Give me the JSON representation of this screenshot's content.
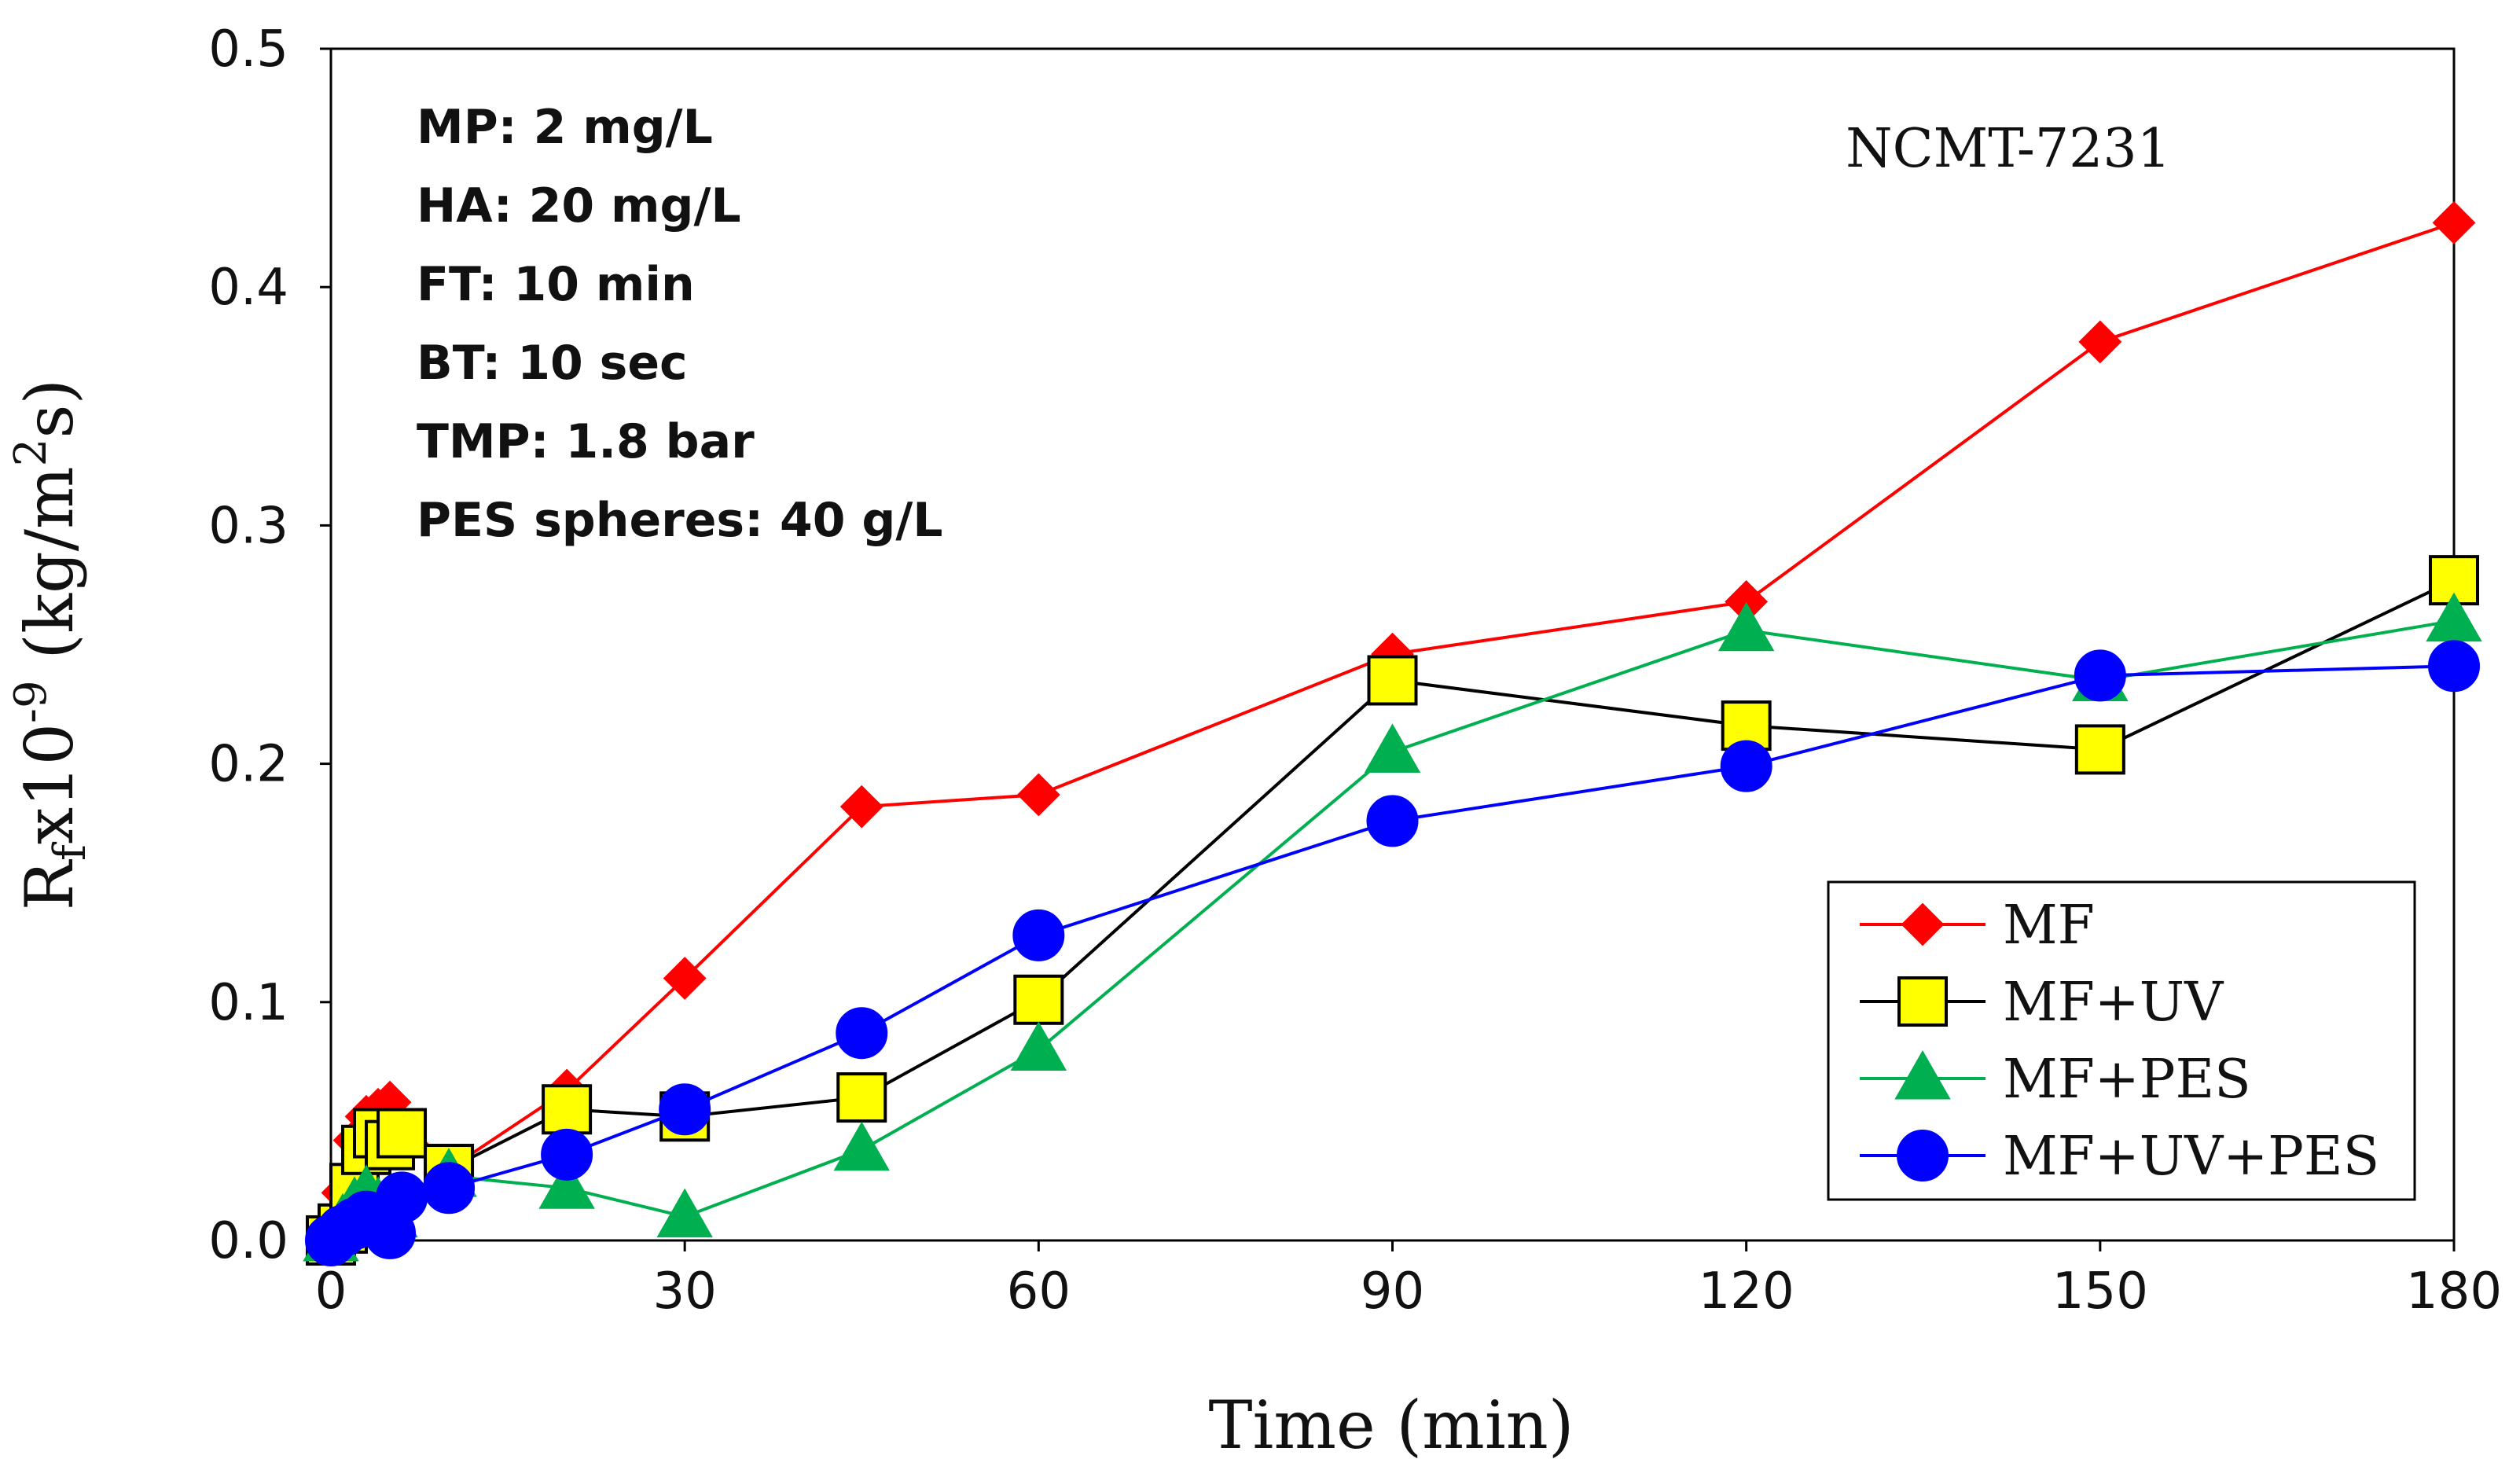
{
  "chart_data": {
    "type": "line",
    "title": "",
    "xlabel": "Time (min)",
    "ylabel": {
      "main": "R",
      "sub": "f",
      "mid": "x10",
      "sup": "-9",
      "unit_open": " (kg/m",
      "unit_sup": "2",
      "unit_close": "s)"
    },
    "xlim": [
      0,
      180
    ],
    "ylim": [
      0,
      0.5
    ],
    "xticks": [
      0,
      30,
      60,
      90,
      120,
      150,
      180
    ],
    "yticks": [
      "0.0",
      "0.1",
      "0.2",
      "0.3",
      "0.4",
      "0.5"
    ],
    "grid": false,
    "legend_position": "bottom-right",
    "sample_tag": "NCMT-7231",
    "annotations": [
      "MP: 2 mg/L",
      "HA: 20 mg/L",
      "FT: 10 min",
      "BT: 10 sec",
      "TMP: 1.8 bar",
      "PES spheres: 40 g/L"
    ],
    "series": [
      {
        "name": "MF",
        "color": "#ff0000",
        "marker": "diamond",
        "x": [
          0,
          1,
          2,
          3,
          4,
          5,
          10,
          20,
          30,
          45,
          60,
          90,
          120,
          150,
          180
        ],
        "y": [
          0.0,
          0.02,
          0.042,
          0.052,
          0.055,
          0.058,
          0.03,
          0.063,
          0.11,
          0.182,
          0.187,
          0.246,
          0.268,
          0.377,
          0.427
        ]
      },
      {
        "name": "MF+UV",
        "color": "#000000",
        "marker": "square",
        "x": [
          0,
          1,
          2,
          3,
          4,
          5,
          6,
          10,
          20,
          30,
          45,
          60,
          90,
          120,
          150,
          180
        ],
        "y": [
          0.0,
          0.005,
          0.022,
          0.038,
          0.045,
          0.04,
          0.045,
          0.03,
          0.055,
          0.052,
          0.06,
          0.101,
          0.235,
          0.216,
          0.206,
          0.277
        ]
      },
      {
        "name": "MF+PES",
        "color": "#00b050",
        "marker": "triangle",
        "x": [
          0,
          1,
          2,
          3,
          4,
          5,
          10,
          20,
          30,
          45,
          60,
          90,
          120,
          150,
          180
        ],
        "y": [
          0.0,
          0.008,
          0.015,
          0.02,
          0.015,
          0.01,
          0.027,
          0.022,
          0.01,
          0.038,
          0.08,
          0.205,
          0.256,
          0.235,
          0.26
        ]
      },
      {
        "name": "MF+UV+PES",
        "color": "#0000ff",
        "marker": "circle",
        "x": [
          0,
          1,
          2,
          3,
          4,
          5,
          6,
          10,
          20,
          30,
          45,
          60,
          90,
          120,
          150,
          180
        ],
        "y": [
          0.0,
          0.004,
          0.007,
          0.01,
          0.008,
          0.003,
          0.018,
          0.022,
          0.036,
          0.055,
          0.087,
          0.128,
          0.176,
          0.199,
          0.237,
          0.241
        ]
      }
    ]
  }
}
